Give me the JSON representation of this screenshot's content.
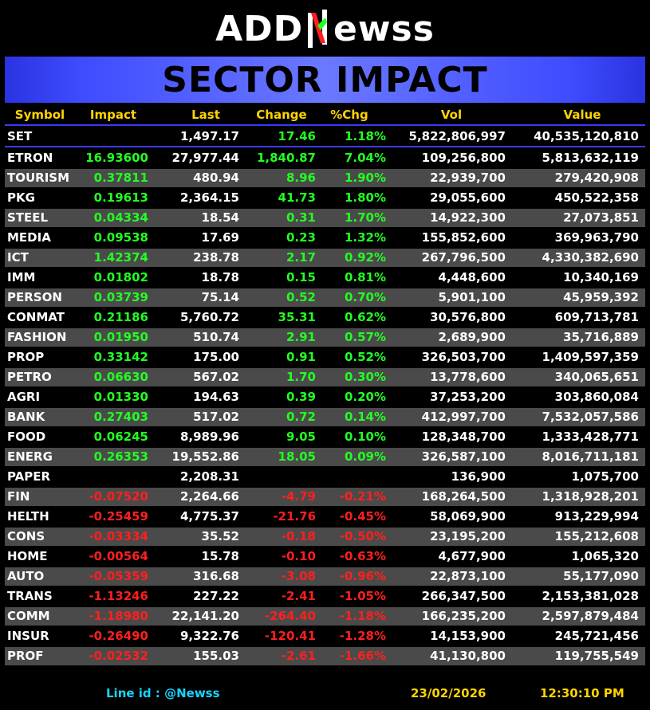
{
  "logo": {
    "pre": "ADD",
    "n": "N",
    "post": "ewss",
    "n_color_green": "#22ff22",
    "n_color_red": "#ff1f1f"
  },
  "banner": {
    "title": "SECTOR IMPACT"
  },
  "columns": {
    "symbol": "Symbol",
    "impact": "Impact",
    "last": "Last",
    "change": "Change",
    "pct": "%Chg",
    "vol": "Vol",
    "value": "Value"
  },
  "set_row": {
    "symbol": "SET",
    "impact": "",
    "last": "1,497.17",
    "change": "17.46",
    "pct": "1.18%",
    "vol": "5,822,806,997",
    "value": "40,535,120,810",
    "trend": "pos"
  },
  "rows": [
    {
      "symbol": "ETRON",
      "impact": "16.93600",
      "last": "27,977.44",
      "change": "1,840.87",
      "pct": "7.04%",
      "vol": "109,256,800",
      "value": "5,813,632,119",
      "trend": "pos"
    },
    {
      "symbol": "TOURISM",
      "impact": "0.37811",
      "last": "480.94",
      "change": "8.96",
      "pct": "1.90%",
      "vol": "22,939,700",
      "value": "279,420,908",
      "trend": "pos"
    },
    {
      "symbol": "PKG",
      "impact": "0.19613",
      "last": "2,364.15",
      "change": "41.73",
      "pct": "1.80%",
      "vol": "29,055,600",
      "value": "450,522,358",
      "trend": "pos"
    },
    {
      "symbol": "STEEL",
      "impact": "0.04334",
      "last": "18.54",
      "change": "0.31",
      "pct": "1.70%",
      "vol": "14,922,300",
      "value": "27,073,851",
      "trend": "pos"
    },
    {
      "symbol": "MEDIA",
      "impact": "0.09538",
      "last": "17.69",
      "change": "0.23",
      "pct": "1.32%",
      "vol": "155,852,600",
      "value": "369,963,790",
      "trend": "pos"
    },
    {
      "symbol": "ICT",
      "impact": "1.42374",
      "last": "238.78",
      "change": "2.17",
      "pct": "0.92%",
      "vol": "267,796,500",
      "value": "4,330,382,690",
      "trend": "pos"
    },
    {
      "symbol": "IMM",
      "impact": "0.01802",
      "last": "18.78",
      "change": "0.15",
      "pct": "0.81%",
      "vol": "4,448,600",
      "value": "10,340,169",
      "trend": "pos"
    },
    {
      "symbol": "PERSON",
      "impact": "0.03739",
      "last": "75.14",
      "change": "0.52",
      "pct": "0.70%",
      "vol": "5,901,100",
      "value": "45,959,392",
      "trend": "pos"
    },
    {
      "symbol": "CONMAT",
      "impact": "0.21186",
      "last": "5,760.72",
      "change": "35.31",
      "pct": "0.62%",
      "vol": "30,576,800",
      "value": "609,713,781",
      "trend": "pos"
    },
    {
      "symbol": "FASHION",
      "impact": "0.01950",
      "last": "510.74",
      "change": "2.91",
      "pct": "0.57%",
      "vol": "2,689,900",
      "value": "35,716,889",
      "trend": "pos"
    },
    {
      "symbol": "PROP",
      "impact": "0.33142",
      "last": "175.00",
      "change": "0.91",
      "pct": "0.52%",
      "vol": "326,503,700",
      "value": "1,409,597,359",
      "trend": "pos"
    },
    {
      "symbol": "PETRO",
      "impact": "0.06630",
      "last": "567.02",
      "change": "1.70",
      "pct": "0.30%",
      "vol": "13,778,600",
      "value": "340,065,651",
      "trend": "pos"
    },
    {
      "symbol": "AGRI",
      "impact": "0.01330",
      "last": "194.63",
      "change": "0.39",
      "pct": "0.20%",
      "vol": "37,253,200",
      "value": "303,860,084",
      "trend": "pos"
    },
    {
      "symbol": "BANK",
      "impact": "0.27403",
      "last": "517.02",
      "change": "0.72",
      "pct": "0.14%",
      "vol": "412,997,700",
      "value": "7,532,057,586",
      "trend": "pos"
    },
    {
      "symbol": "FOOD",
      "impact": "0.06245",
      "last": "8,989.96",
      "change": "9.05",
      "pct": "0.10%",
      "vol": "128,348,700",
      "value": "1,333,428,771",
      "trend": "pos"
    },
    {
      "symbol": "ENERG",
      "impact": "0.26353",
      "last": "19,552.86",
      "change": "18.05",
      "pct": "0.09%",
      "vol": "326,587,100",
      "value": "8,016,711,181",
      "trend": "pos"
    },
    {
      "symbol": "PAPER",
      "impact": "",
      "last": "2,208.31",
      "change": "",
      "pct": "",
      "vol": "136,900",
      "value": "1,075,700",
      "trend": "neu"
    },
    {
      "symbol": "FIN",
      "impact": "-0.07520",
      "last": "2,264.66",
      "change": "-4.79",
      "pct": "-0.21%",
      "vol": "168,264,500",
      "value": "1,318,928,201",
      "trend": "neg"
    },
    {
      "symbol": "HELTH",
      "impact": "-0.25459",
      "last": "4,775.37",
      "change": "-21.76",
      "pct": "-0.45%",
      "vol": "58,069,900",
      "value": "913,229,994",
      "trend": "neg"
    },
    {
      "symbol": "CONS",
      "impact": "-0.03334",
      "last": "35.52",
      "change": "-0.18",
      "pct": "-0.50%",
      "vol": "23,195,200",
      "value": "155,212,608",
      "trend": "neg"
    },
    {
      "symbol": "HOME",
      "impact": "-0.00564",
      "last": "15.78",
      "change": "-0.10",
      "pct": "-0.63%",
      "vol": "4,677,900",
      "value": "1,065,320",
      "trend": "neg"
    },
    {
      "symbol": "AUTO",
      "impact": "-0.05359",
      "last": "316.68",
      "change": "-3.08",
      "pct": "-0.96%",
      "vol": "22,873,100",
      "value": "55,177,090",
      "trend": "neg"
    },
    {
      "symbol": "TRANS",
      "impact": "-1.13246",
      "last": "227.22",
      "change": "-2.41",
      "pct": "-1.05%",
      "vol": "266,347,500",
      "value": "2,153,381,028",
      "trend": "neg"
    },
    {
      "symbol": "COMM",
      "impact": "-1.18980",
      "last": "22,141.20",
      "change": "-264.40",
      "pct": "-1.18%",
      "vol": "166,235,200",
      "value": "2,597,879,484",
      "trend": "neg"
    },
    {
      "symbol": "INSUR",
      "impact": "-0.26490",
      "last": "9,322.76",
      "change": "-120.41",
      "pct": "-1.28%",
      "vol": "14,153,900",
      "value": "245,721,456",
      "trend": "neg"
    },
    {
      "symbol": "PROF",
      "impact": "-0.02532",
      "last": "155.03",
      "change": "-2.61",
      "pct": "-1.66%",
      "vol": "41,130,800",
      "value": "119,755,549",
      "trend": "neg"
    }
  ],
  "footer": {
    "line_id": "Line id  : @Newss",
    "date": "23/02/2026",
    "time": "12:30:10 PM"
  },
  "colors": {
    "positive": "#22ff22",
    "negative": "#ff1f1f",
    "header": "#ffd400",
    "line_id": "#19d3ff",
    "banner": "#4a56ff"
  }
}
